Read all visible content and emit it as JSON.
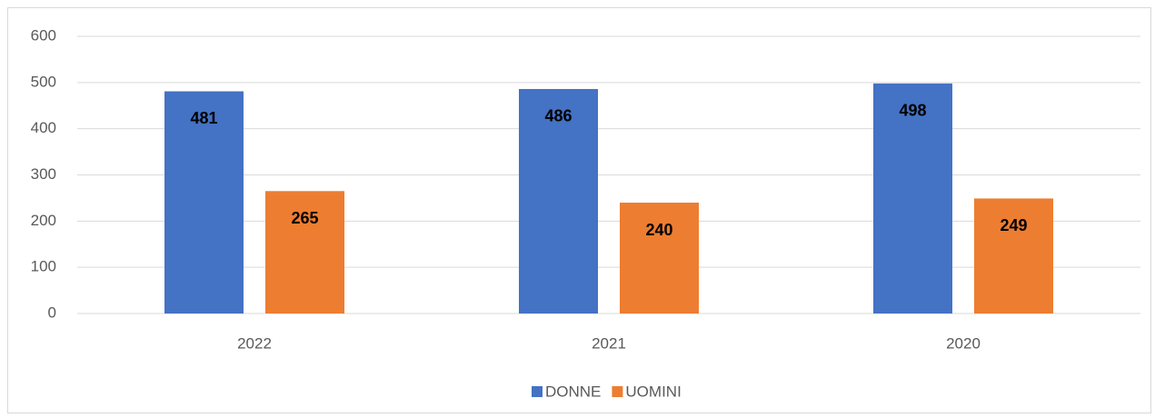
{
  "chart_data": {
    "type": "bar",
    "categories": [
      "2022",
      "2021",
      "2020"
    ],
    "series": [
      {
        "name": "DONNE",
        "color": "#4472c4",
        "values": [
          481,
          486,
          498
        ]
      },
      {
        "name": "UOMINI",
        "color": "#ed7d31",
        "values": [
          265,
          240,
          249
        ]
      }
    ],
    "ylim": [
      0,
      600
    ],
    "yticks": [
      0,
      100,
      200,
      300,
      400,
      500,
      600
    ],
    "grid": true,
    "legend": "bottom"
  }
}
